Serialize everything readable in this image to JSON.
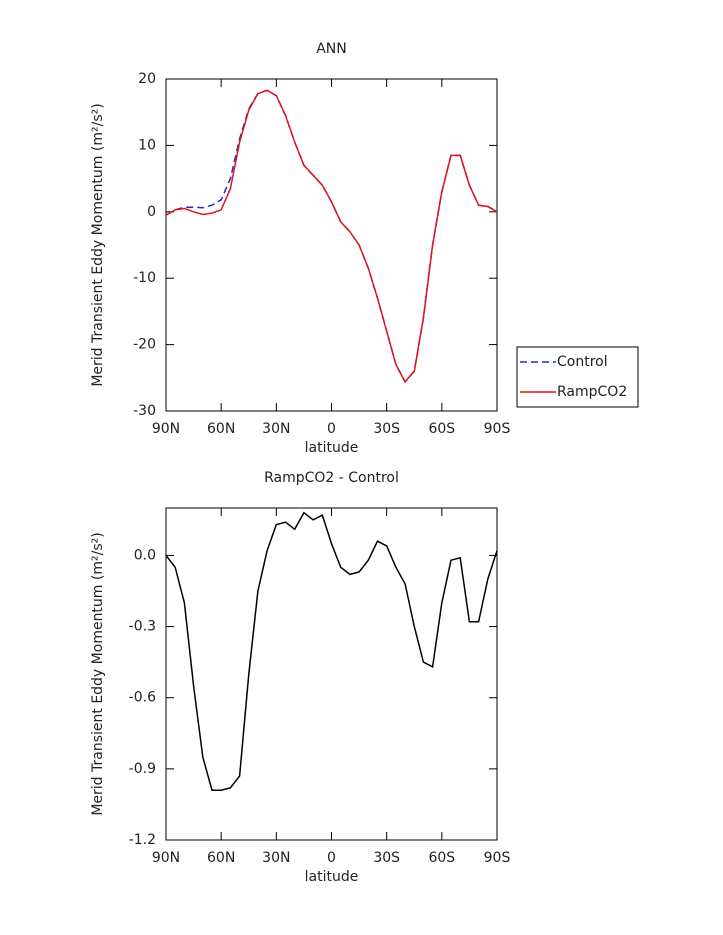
{
  "chart_data": [
    {
      "type": "line",
      "title": "ANN",
      "xlabel": "latitude",
      "ylabel": "Merid Transient Eddy Momentum (m²/s²)",
      "x": [
        90,
        85,
        80,
        75,
        70,
        65,
        60,
        55,
        50,
        45,
        40,
        35,
        30,
        25,
        20,
        15,
        10,
        5,
        0,
        -5,
        -10,
        -15,
        -20,
        -25,
        -30,
        -35,
        -40,
        -45,
        -50,
        -55,
        -60,
        -65,
        -70,
        -75,
        -80,
        -85,
        -90
      ],
      "series": [
        {
          "name": "Control",
          "color": "#1f2ecc",
          "style": "dashed",
          "values": [
            -0.5,
            0.3,
            0.7,
            0.7,
            0.6,
            1.0,
            1.8,
            5,
            11,
            15.5,
            17.8,
            18.3,
            17.5,
            14.5,
            10.5,
            7,
            5.5,
            4,
            1.5,
            -1.5,
            -3,
            -5,
            -8.5,
            -13,
            -18,
            -23,
            -25.6,
            -24,
            -16,
            -5,
            3,
            8.5,
            8.5,
            4,
            1,
            0.8,
            0
          ]
        },
        {
          "name": "RampCO2",
          "color": "#e0141e",
          "style": "solid",
          "values": [
            -0.5,
            0.3,
            0.5,
            0,
            -0.4,
            -0.2,
            0.3,
            3.5,
            10.5,
            15.3,
            17.8,
            18.3,
            17.5,
            14.5,
            10.5,
            7,
            5.5,
            4,
            1.5,
            -1.5,
            -3,
            -5,
            -8.5,
            -13,
            -18,
            -23,
            -25.6,
            -24,
            -16,
            -5,
            3,
            8.5,
            8.5,
            4,
            1,
            0.8,
            0
          ]
        }
      ],
      "xlim": [
        90,
        -90
      ],
      "xticks": [
        {
          "value": 90,
          "label": "90N"
        },
        {
          "value": 60,
          "label": "60N"
        },
        {
          "value": 30,
          "label": "30N"
        },
        0,
        {
          "value": -30,
          "label": "30S"
        },
        {
          "value": -60,
          "label": "60S"
        },
        {
          "value": -90,
          "label": "90S"
        }
      ],
      "ylim": [
        -30,
        20
      ],
      "yticks": [
        20,
        10,
        0,
        -10,
        -20,
        -30
      ],
      "legend": "right"
    },
    {
      "type": "line",
      "title": "RampCO2 - Control",
      "xlabel": "latitude",
      "ylabel": "Merid Transient Eddy Momentum (m²/s²)",
      "x": [
        90,
        85,
        80,
        75,
        70,
        65,
        60,
        55,
        50,
        45,
        40,
        35,
        30,
        25,
        20,
        15,
        10,
        5,
        0,
        -5,
        -10,
        -15,
        -20,
        -25,
        -30,
        -35,
        -40,
        -45,
        -50,
        -55,
        -60,
        -65,
        -70,
        -75,
        -80,
        -85,
        -90
      ],
      "series": [
        {
          "color": "#000000",
          "style": "solid",
          "values": [
            0,
            -0.05,
            -0.2,
            -0.55,
            -0.85,
            -0.99,
            -0.99,
            -0.98,
            -0.93,
            -0.5,
            -0.15,
            0.02,
            0.13,
            0.14,
            0.11,
            0.18,
            0.15,
            0.17,
            0.05,
            -0.05,
            -0.08,
            -0.07,
            -0.02,
            0.06,
            0.04,
            -0.05,
            -0.12,
            -0.3,
            -0.45,
            -0.47,
            -0.2,
            -0.02,
            -0.01,
            -0.28,
            -0.28,
            -0.1,
            0.02
          ]
        }
      ],
      "xlim": [
        90,
        -90
      ],
      "xticks": [
        {
          "value": 90,
          "label": "90N"
        },
        {
          "value": 60,
          "label": "60N"
        },
        {
          "value": 30,
          "label": "30N"
        },
        0,
        {
          "value": -30,
          "label": "30S"
        },
        {
          "value": -60,
          "label": "60S"
        },
        {
          "value": -90,
          "label": "90S"
        }
      ],
      "ylim": [
        -1.2,
        0.2
      ],
      "yticks": [
        {
          "value": 0,
          "label": "0.0"
        },
        -0.3,
        -0.6,
        -0.9,
        -1.2
      ]
    }
  ]
}
